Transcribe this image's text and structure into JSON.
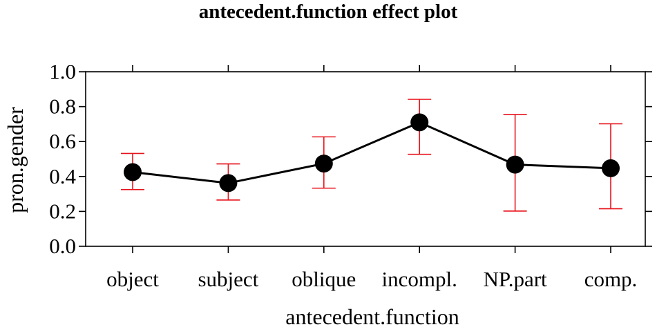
{
  "chart_data": {
    "type": "line",
    "title": "antecedent.function effect plot",
    "xlabel": "antecedent.function",
    "ylabel": "pron.gender",
    "categories": [
      "object",
      "subject",
      "oblique",
      "incompl.",
      "NP.part",
      "comp."
    ],
    "series": [
      {
        "values": [
          0.425,
          0.362,
          0.474,
          0.71,
          0.468,
          0.447
        ],
        "lower": [
          0.325,
          0.265,
          0.333,
          0.527,
          0.202,
          0.215
        ],
        "upper": [
          0.532,
          0.472,
          0.627,
          0.842,
          0.755,
          0.702
        ]
      }
    ],
    "ylim": [
      0.0,
      1.0
    ],
    "yticks": [
      "0.0",
      "0.2",
      "0.4",
      "0.6",
      "0.8",
      "1.0"
    ],
    "grid": false,
    "legend": "none",
    "colors": {
      "line": "#000000",
      "points": "#000000",
      "error_bars": "#e8141c"
    }
  }
}
